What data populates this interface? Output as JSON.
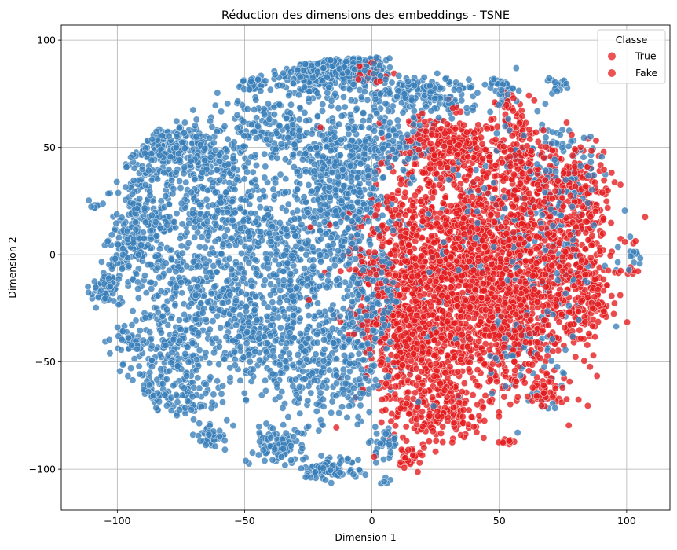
{
  "chart_data": {
    "type": "scatter",
    "title": "Réduction des dimensions des embeddings - TSNE",
    "xlabel": "Dimension 1",
    "ylabel": "Dimension 2",
    "xlim": [
      -122,
      117
    ],
    "ylim": [
      -119,
      107
    ],
    "xticks": [
      -100,
      -50,
      0,
      50,
      100
    ],
    "yticks": [
      -100,
      -50,
      0,
      50,
      100
    ],
    "xtick_labels": [
      "−100",
      "−50",
      "0",
      "50",
      "100"
    ],
    "ytick_labels": [
      "−100",
      "−50",
      "0",
      "50",
      "100"
    ],
    "grid": true,
    "legend": {
      "title": "Classe",
      "placement": "top-right",
      "entries": [
        "True",
        "Fake"
      ]
    },
    "colors": {
      "blue": "#377eb8",
      "red": "#e41a1c"
    },
    "series": [
      {
        "name": "True",
        "color": "#377eb8",
        "clusters": [
          {
            "cx": -105,
            "cy": -17,
            "sx": 3,
            "sy": 5,
            "n": 60
          },
          {
            "cx": -92,
            "cy": 2,
            "sx": 6,
            "sy": 8,
            "n": 140
          },
          {
            "cx": -90,
            "cy": 22,
            "sx": 6,
            "sy": 8,
            "n": 110
          },
          {
            "cx": -84,
            "cy": 50,
            "sx": 10,
            "sy": 6,
            "n": 150
          },
          {
            "cx": -68,
            "cy": 47,
            "sx": 10,
            "sy": 9,
            "n": 160
          },
          {
            "cx": -96,
            "cy": -40,
            "sx": 3,
            "sy": 3,
            "n": 40
          },
          {
            "cx": -78,
            "cy": -45,
            "sx": 8,
            "sy": 10,
            "n": 150
          },
          {
            "cx": -76,
            "cy": -65,
            "sx": 8,
            "sy": 6,
            "n": 100
          },
          {
            "cx": -63,
            "cy": -85,
            "sx": 3,
            "sy": 3,
            "n": 40
          },
          {
            "cx": -70,
            "cy": -15,
            "sx": 12,
            "sy": 12,
            "n": 240
          },
          {
            "cx": -60,
            "cy": 20,
            "sx": 12,
            "sy": 14,
            "n": 260
          },
          {
            "cx": -45,
            "cy": -40,
            "sx": 12,
            "sy": 14,
            "n": 280
          },
          {
            "cx": -38,
            "cy": -88,
            "sx": 5,
            "sy": 4,
            "n": 90
          },
          {
            "cx": -15,
            "cy": -100,
            "sx": 5,
            "sy": 3,
            "n": 90
          },
          {
            "cx": -30,
            "cy": 0,
            "sx": 14,
            "sy": 18,
            "n": 420
          },
          {
            "cx": -15,
            "cy": -50,
            "sx": 12,
            "sy": 14,
            "n": 300
          },
          {
            "cx": -40,
            "cy": 60,
            "sx": 8,
            "sy": 10,
            "n": 160
          },
          {
            "cx": -22,
            "cy": 86,
            "sx": 9,
            "sy": 6,
            "n": 210
          },
          {
            "cx": -5,
            "cy": 88,
            "sx": 6,
            "sy": 5,
            "n": 110
          },
          {
            "cx": -45,
            "cy": 80,
            "sx": 3,
            "sy": 2,
            "n": 30
          },
          {
            "cx": -15,
            "cy": 50,
            "sx": 10,
            "sy": 12,
            "n": 220
          },
          {
            "cx": -8,
            "cy": 20,
            "sx": 8,
            "sy": 12,
            "n": 200
          },
          {
            "cx": 5,
            "cy": 55,
            "sx": 8,
            "sy": 8,
            "n": 130
          },
          {
            "cx": 20,
            "cy": 75,
            "sx": 12,
            "sy": 5,
            "n": 170
          },
          {
            "cx": 52,
            "cy": 82,
            "sx": 3,
            "sy": 4,
            "n": 40
          },
          {
            "cx": 74,
            "cy": 79,
            "sx": 2,
            "sy": 2,
            "n": 20
          },
          {
            "cx": 70,
            "cy": 40,
            "sx": 10,
            "sy": 12,
            "n": 110
          },
          {
            "cx": 75,
            "cy": 0,
            "sx": 8,
            "sy": 20,
            "n": 90
          },
          {
            "cx": 60,
            "cy": -45,
            "sx": 10,
            "sy": 15,
            "n": 70
          },
          {
            "cx": 40,
            "cy": 20,
            "sx": 20,
            "sy": 30,
            "n": 160
          },
          {
            "cx": 102,
            "cy": -3,
            "sx": 2,
            "sy": 3,
            "n": 12
          },
          {
            "cx": 5,
            "cy": -88,
            "sx": 3,
            "sy": 4,
            "n": 30
          },
          {
            "cx": 5,
            "cy": -106,
            "sx": 1,
            "sy": 2,
            "n": 5
          },
          {
            "cx": 0,
            "cy": -20,
            "sx": 6,
            "sy": 14,
            "n": 150
          },
          {
            "cx": -110,
            "cy": 24,
            "sx": 2,
            "sy": 1,
            "n": 8
          }
        ]
      },
      {
        "name": "Fake",
        "color": "#e41a1c",
        "clusters": [
          {
            "cx": 30,
            "cy": 50,
            "sx": 10,
            "sy": 8,
            "n": 260
          },
          {
            "cx": 35,
            "cy": 0,
            "sx": 18,
            "sy": 22,
            "n": 1050
          },
          {
            "cx": 55,
            "cy": -30,
            "sx": 14,
            "sy": 18,
            "n": 520
          },
          {
            "cx": 70,
            "cy": 10,
            "sx": 12,
            "sy": 20,
            "n": 400
          },
          {
            "cx": 20,
            "cy": -45,
            "sx": 12,
            "sy": 14,
            "n": 380
          },
          {
            "cx": 10,
            "cy": -10,
            "sx": 8,
            "sy": 20,
            "n": 320
          },
          {
            "cx": 85,
            "cy": -20,
            "sx": 4,
            "sy": 10,
            "n": 110
          },
          {
            "cx": 25,
            "cy": -75,
            "sx": 10,
            "sy": 6,
            "n": 160
          },
          {
            "cx": 60,
            "cy": 40,
            "sx": 10,
            "sy": 10,
            "n": 160
          },
          {
            "cx": 55,
            "cy": 65,
            "sx": 5,
            "sy": 6,
            "n": 40
          },
          {
            "cx": 15,
            "cy": -95,
            "sx": 3,
            "sy": 3,
            "n": 30
          },
          {
            "cx": 52,
            "cy": -87,
            "sx": 2,
            "sy": 1,
            "n": 10
          },
          {
            "cx": 68,
            "cy": -65,
            "sx": 4,
            "sy": 3,
            "n": 40
          },
          {
            "cx": 85,
            "cy": 25,
            "sx": 4,
            "sy": 10,
            "n": 60
          },
          {
            "cx": 100,
            "cy": -8,
            "sx": 2,
            "sy": 1,
            "n": 8
          },
          {
            "cx": 0,
            "cy": 85,
            "sx": 4,
            "sy": 4,
            "n": 25
          }
        ]
      }
    ]
  }
}
